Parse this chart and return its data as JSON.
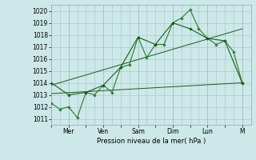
{
  "title": "",
  "xlabel": "Pression niveau de la mer( hPa )",
  "ylabel": "",
  "bg_color": "#cce8e8",
  "grid_color": "#aacccc",
  "line_color_dark": "#1a5c1a",
  "line_color_mid": "#2d7a2d",
  "ylim": [
    1010.5,
    1020.5
  ],
  "yticks": [
    1011,
    1012,
    1013,
    1014,
    1015,
    1016,
    1017,
    1018,
    1019,
    1020
  ],
  "xlim": [
    0,
    23
  ],
  "day_labels": [
    "",
    "Mer",
    "",
    "Ven",
    "",
    "Sam",
    "",
    "Dim",
    "",
    "Lun",
    "",
    "M"
  ],
  "day_positions": [
    0,
    2,
    4,
    6,
    8,
    10,
    12,
    14,
    16,
    18,
    20,
    22
  ],
  "vline_positions": [
    2,
    6,
    10,
    14,
    18,
    22
  ],
  "series1_jagged": {
    "x": [
      0,
      1,
      2,
      3,
      4,
      5,
      6,
      7,
      8,
      9,
      10,
      11,
      12,
      13,
      14,
      15,
      16,
      17,
      18,
      19,
      20,
      21,
      22
    ],
    "y": [
      1012.3,
      1011.8,
      1012.0,
      1011.1,
      1013.2,
      1013.0,
      1013.8,
      1013.2,
      1015.3,
      1015.5,
      1017.8,
      1016.1,
      1017.2,
      1017.2,
      1019.0,
      1019.4,
      1020.1,
      1018.5,
      1017.7,
      1017.2,
      1017.5,
      1016.6,
      1014.0
    ]
  },
  "series2_smooth": {
    "x": [
      0,
      2,
      4,
      6,
      8,
      10,
      12,
      14,
      16,
      18,
      20,
      22
    ],
    "y": [
      1014.0,
      1013.0,
      1013.2,
      1013.8,
      1015.3,
      1017.8,
      1017.2,
      1019.0,
      1018.5,
      1017.7,
      1017.5,
      1014.0
    ]
  },
  "series3_flat": {
    "x": [
      0,
      22
    ],
    "y": [
      1013.1,
      1014.0
    ]
  },
  "series4_trend": {
    "x": [
      0,
      22
    ],
    "y": [
      1013.8,
      1018.5
    ]
  }
}
